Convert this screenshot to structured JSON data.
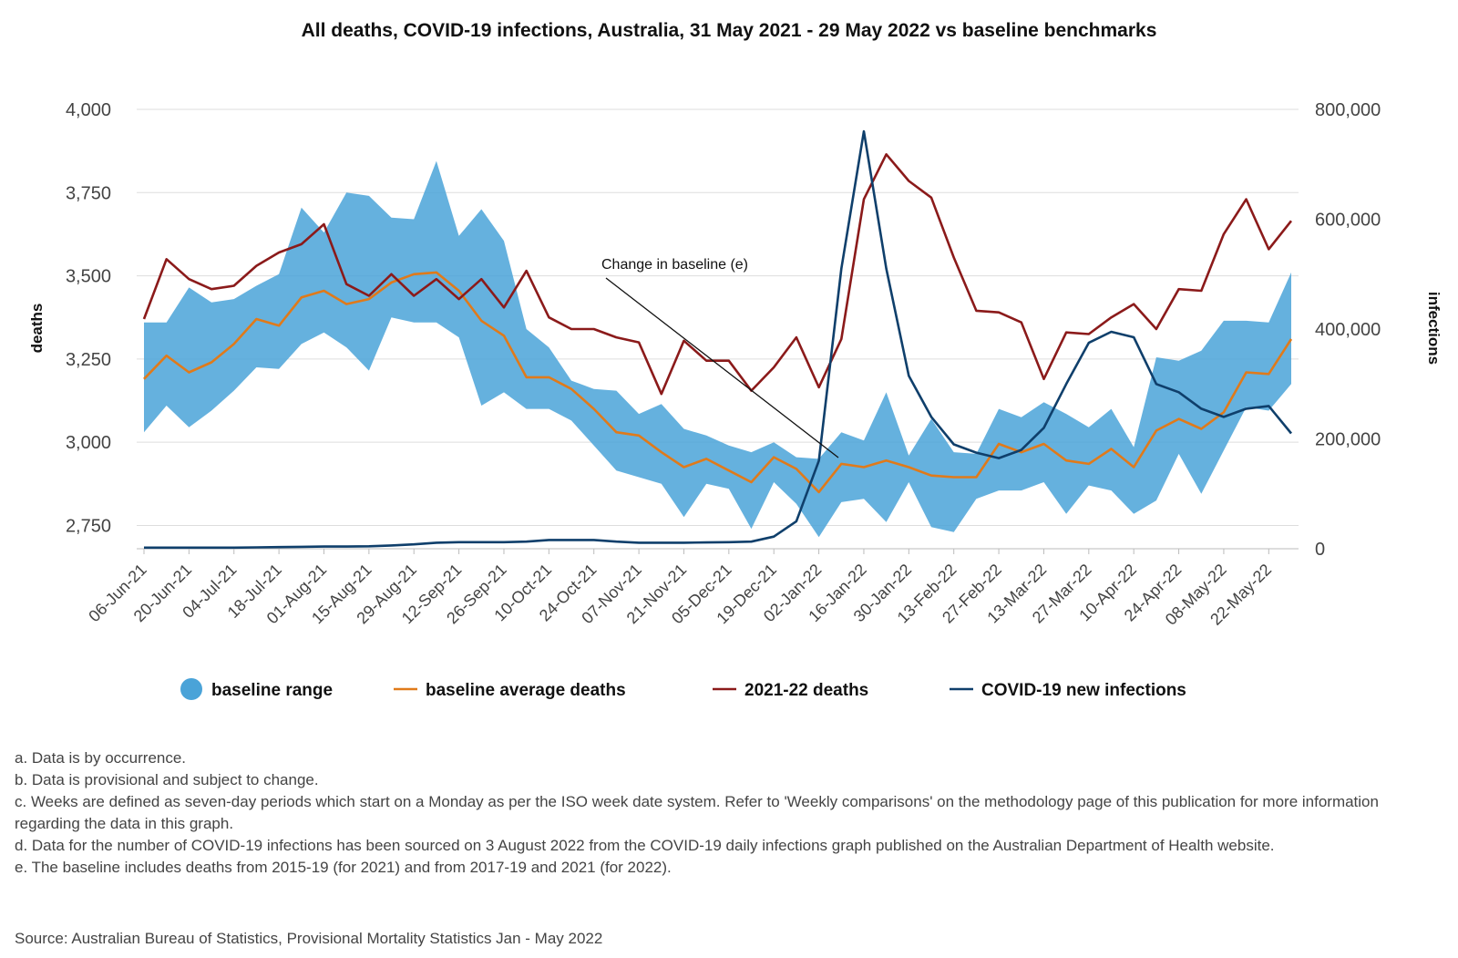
{
  "chart_data": {
    "type": "line",
    "title": "All deaths, COVID-19 infections, Australia, 31 May 2021 - 29 May 2022 vs baseline benchmarks",
    "ylabel": "deaths",
    "y2label": "infections",
    "ylim": [
      2680,
      4000
    ],
    "y2lim": [
      0,
      800000
    ],
    "yticks": [
      2750,
      3000,
      3250,
      3500,
      3750,
      4000
    ],
    "yticks_labels": [
      "2,750",
      "3,000",
      "3,250",
      "3,500",
      "3,750",
      "4,000"
    ],
    "y2ticks": [
      0,
      200000,
      400000,
      600000,
      800000
    ],
    "y2ticks_labels": [
      "0",
      "200,000",
      "400,000",
      "600,000",
      "800,000"
    ],
    "grid": true,
    "legend_position": "bottom",
    "x": [
      "06-Jun-21",
      "13-Jun-21",
      "20-Jun-21",
      "27-Jun-21",
      "04-Jul-21",
      "11-Jul-21",
      "18-Jul-21",
      "25-Jul-21",
      "01-Aug-21",
      "08-Aug-21",
      "15-Aug-21",
      "22-Aug-21",
      "29-Aug-21",
      "05-Sep-21",
      "12-Sep-21",
      "19-Sep-21",
      "26-Sep-21",
      "03-Oct-21",
      "10-Oct-21",
      "17-Oct-21",
      "24-Oct-21",
      "31-Oct-21",
      "07-Nov-21",
      "14-Nov-21",
      "21-Nov-21",
      "28-Nov-21",
      "05-Dec-21",
      "12-Dec-21",
      "19-Dec-21",
      "26-Dec-21",
      "02-Jan-22",
      "09-Jan-22",
      "16-Jan-22",
      "23-Jan-22",
      "30-Jan-22",
      "06-Feb-22",
      "13-Feb-22",
      "20-Feb-22",
      "27-Feb-22",
      "06-Mar-22",
      "13-Mar-22",
      "20-Mar-22",
      "27-Mar-22",
      "03-Apr-22",
      "10-Apr-22",
      "17-Apr-22",
      "24-Apr-22",
      "01-May-22",
      "08-May-22",
      "15-May-22",
      "22-May-22",
      "29-May-22"
    ],
    "x_tick_labels": [
      "06-Jun-21",
      "20-Jun-21",
      "04-Jul-21",
      "18-Jul-21",
      "01-Aug-21",
      "15-Aug-21",
      "29-Aug-21",
      "12-Sep-21",
      "26-Sep-21",
      "10-Oct-21",
      "24-Oct-21",
      "07-Nov-21",
      "21-Nov-21",
      "05-Dec-21",
      "19-Dec-21",
      "02-Jan-22",
      "16-Jan-22",
      "30-Jan-22",
      "13-Feb-22",
      "27-Feb-22",
      "13-Mar-22",
      "27-Mar-22",
      "10-Apr-22",
      "24-Apr-22",
      "08-May-22",
      "22-May-22"
    ],
    "series": [
      {
        "name": "baseline range",
        "type": "range",
        "color": "#4aa3d8",
        "upper": [
          3360,
          3360,
          3465,
          3420,
          3430,
          3470,
          3505,
          3705,
          3630,
          3750,
          3740,
          3675,
          3670,
          3845,
          3620,
          3700,
          3605,
          3340,
          3285,
          3185,
          3160,
          3155,
          3085,
          3115,
          3040,
          3020,
          2990,
          2970,
          3000,
          2955,
          2950,
          3030,
          3005,
          3150,
          2960,
          3070,
          2970,
          2965,
          3100,
          3075,
          3120,
          3085,
          3045,
          3100,
          2985,
          3255,
          3245,
          3275,
          3365,
          3365,
          3360,
          3510
        ],
        "lower": [
          3030,
          3110,
          3045,
          3095,
          3155,
          3225,
          3220,
          3295,
          3330,
          3285,
          3215,
          3375,
          3360,
          3360,
          3315,
          3110,
          3150,
          3100,
          3100,
          3065,
          2990,
          2915,
          2895,
          2875,
          2775,
          2875,
          2860,
          2740,
          2880,
          2815,
          2715,
          2820,
          2830,
          2760,
          2880,
          2745,
          2730,
          2830,
          2855,
          2855,
          2880,
          2785,
          2870,
          2855,
          2785,
          2825,
          2965,
          2845,
          2975,
          3105,
          3095,
          3175
        ]
      },
      {
        "name": "baseline average deaths",
        "color": "#e07a1a",
        "values": [
          3190,
          3260,
          3210,
          3240,
          3295,
          3370,
          3350,
          3435,
          3455,
          3415,
          3430,
          3480,
          3505,
          3510,
          3455,
          3365,
          3320,
          3195,
          3195,
          3160,
          3100,
          3030,
          3020,
          2970,
          2925,
          2950,
          2915,
          2880,
          2955,
          2920,
          2850,
          2935,
          2925,
          2945,
          2925,
          2900,
          2895,
          2895,
          2995,
          2970,
          2995,
          2945,
          2935,
          2980,
          2925,
          3035,
          3070,
          3040,
          3090,
          3210,
          3205,
          3310
        ]
      },
      {
        "name": "2021-22 deaths",
        "color": "#8b1a1a",
        "values": [
          3370,
          3550,
          3490,
          3460,
          3470,
          3530,
          3570,
          3595,
          3655,
          3475,
          3440,
          3505,
          3440,
          3490,
          3430,
          3490,
          3405,
          3515,
          3375,
          3340,
          3340,
          3315,
          3300,
          3145,
          3305,
          3245,
          3245,
          3155,
          3225,
          3315,
          3165,
          3310,
          3730,
          3865,
          3785,
          3735,
          3555,
          3395,
          3390,
          3360,
          3190,
          3330,
          3325,
          3375,
          3415,
          3340,
          3460,
          3455,
          3625,
          3730,
          3580,
          3665
        ]
      },
      {
        "name": "COVID-19 new infections",
        "axis": "right",
        "color": "#0f3f6b",
        "values": [
          2000,
          2000,
          2000,
          2000,
          2000,
          2500,
          3000,
          3500,
          4000,
          4000,
          4500,
          6000,
          8000,
          11000,
          12000,
          12000,
          12000,
          13000,
          16000,
          16000,
          16000,
          13000,
          11000,
          11000,
          11000,
          11500,
          12000,
          13000,
          22000,
          50000,
          160000,
          510000,
          760000,
          510000,
          315000,
          240000,
          190000,
          175000,
          165000,
          180000,
          220000,
          300000,
          375000,
          395000,
          385000,
          300000,
          285000,
          255000,
          240000,
          255000,
          260000,
          210000
        ]
      }
    ],
    "annotation": "Change in baseline (e)"
  },
  "notes": [
    "a. Data is by occurrence.",
    "b. Data is provisional and subject to change.",
    "c. Weeks are defined as seven-day periods which start on a Monday as per the ISO week date system. Refer to 'Weekly comparisons' on the methodology page of this publication for more information regarding the data in this graph.",
    "d. Data for the number of COVID-19 infections has been sourced on 3 August 2022 from the COVID-19 daily infections graph published on the Australian Department of Health website.",
    "e. The baseline includes deaths from 2015-19 (for 2021) and from 2017-19 and 2021 (for 2022)."
  ],
  "source": "Source: Australian Bureau of Statistics, Provisional Mortality Statistics Jan - May 2022"
}
